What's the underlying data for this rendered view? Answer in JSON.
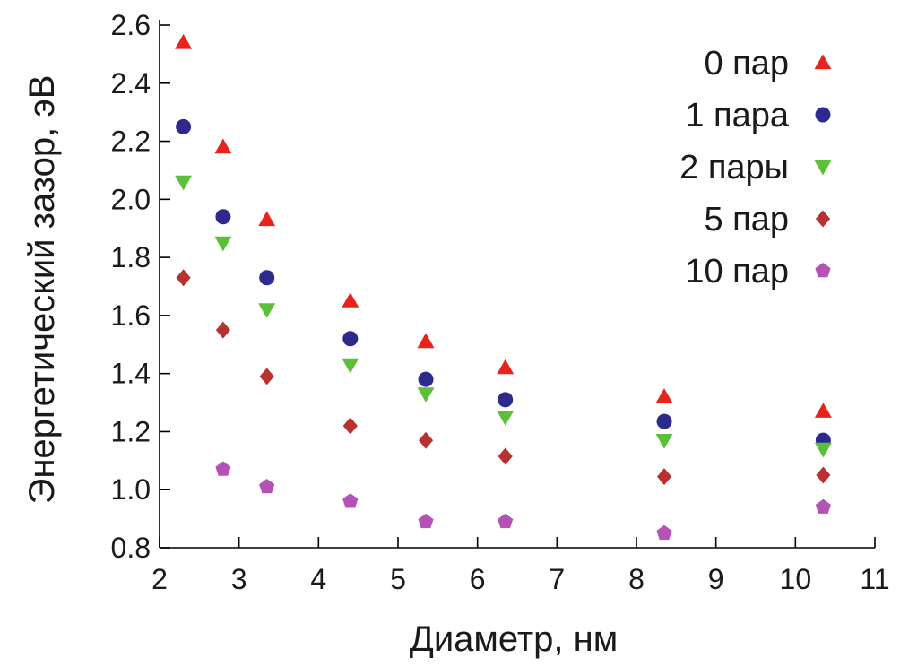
{
  "chart_data": {
    "type": "scatter",
    "title": "",
    "xlabel": "Диаметр, нм",
    "ylabel": "Энергетический зазор, эВ",
    "xlim": [
      2,
      11
    ],
    "ylim": [
      0.8,
      2.6
    ],
    "xticks": [
      2,
      3,
      4,
      5,
      6,
      7,
      8,
      9,
      10,
      11
    ],
    "yticks": [
      "0.8",
      "1.0",
      "1.2",
      "1.4",
      "1.6",
      "1.8",
      "2.0",
      "2.2",
      "2.4",
      "2.6"
    ],
    "grid": false,
    "legend_position": "top-right",
    "x": [
      2.3,
      2.8,
      3.35,
      4.4,
      5.35,
      6.35,
      8.35,
      10.35
    ],
    "series": [
      {
        "name": "0 пар",
        "marker": "triangle-up",
        "color": "#e8231e",
        "values": [
          2.54,
          2.18,
          1.93,
          1.65,
          1.51,
          1.42,
          1.32,
          1.27
        ]
      },
      {
        "name": "1 пара",
        "marker": "circle",
        "color": "#2d2a8e",
        "values": [
          2.25,
          1.94,
          1.73,
          1.52,
          1.38,
          1.31,
          1.235,
          1.17
        ]
      },
      {
        "name": "2 пары",
        "marker": "triangle-down",
        "color": "#5cbf3a",
        "values": [
          2.06,
          1.85,
          1.62,
          1.43,
          1.33,
          1.25,
          1.17,
          1.14
        ]
      },
      {
        "name": "5 пар",
        "marker": "diamond",
        "color": "#b83232",
        "values": [
          1.73,
          1.55,
          1.39,
          1.22,
          1.17,
          1.115,
          1.045,
          1.05
        ]
      },
      {
        "name": "10 пар",
        "marker": "pentagon",
        "color": "#b552b5",
        "values": [
          null,
          1.07,
          1.01,
          0.96,
          0.89,
          0.89,
          0.85,
          0.94
        ]
      }
    ]
  }
}
